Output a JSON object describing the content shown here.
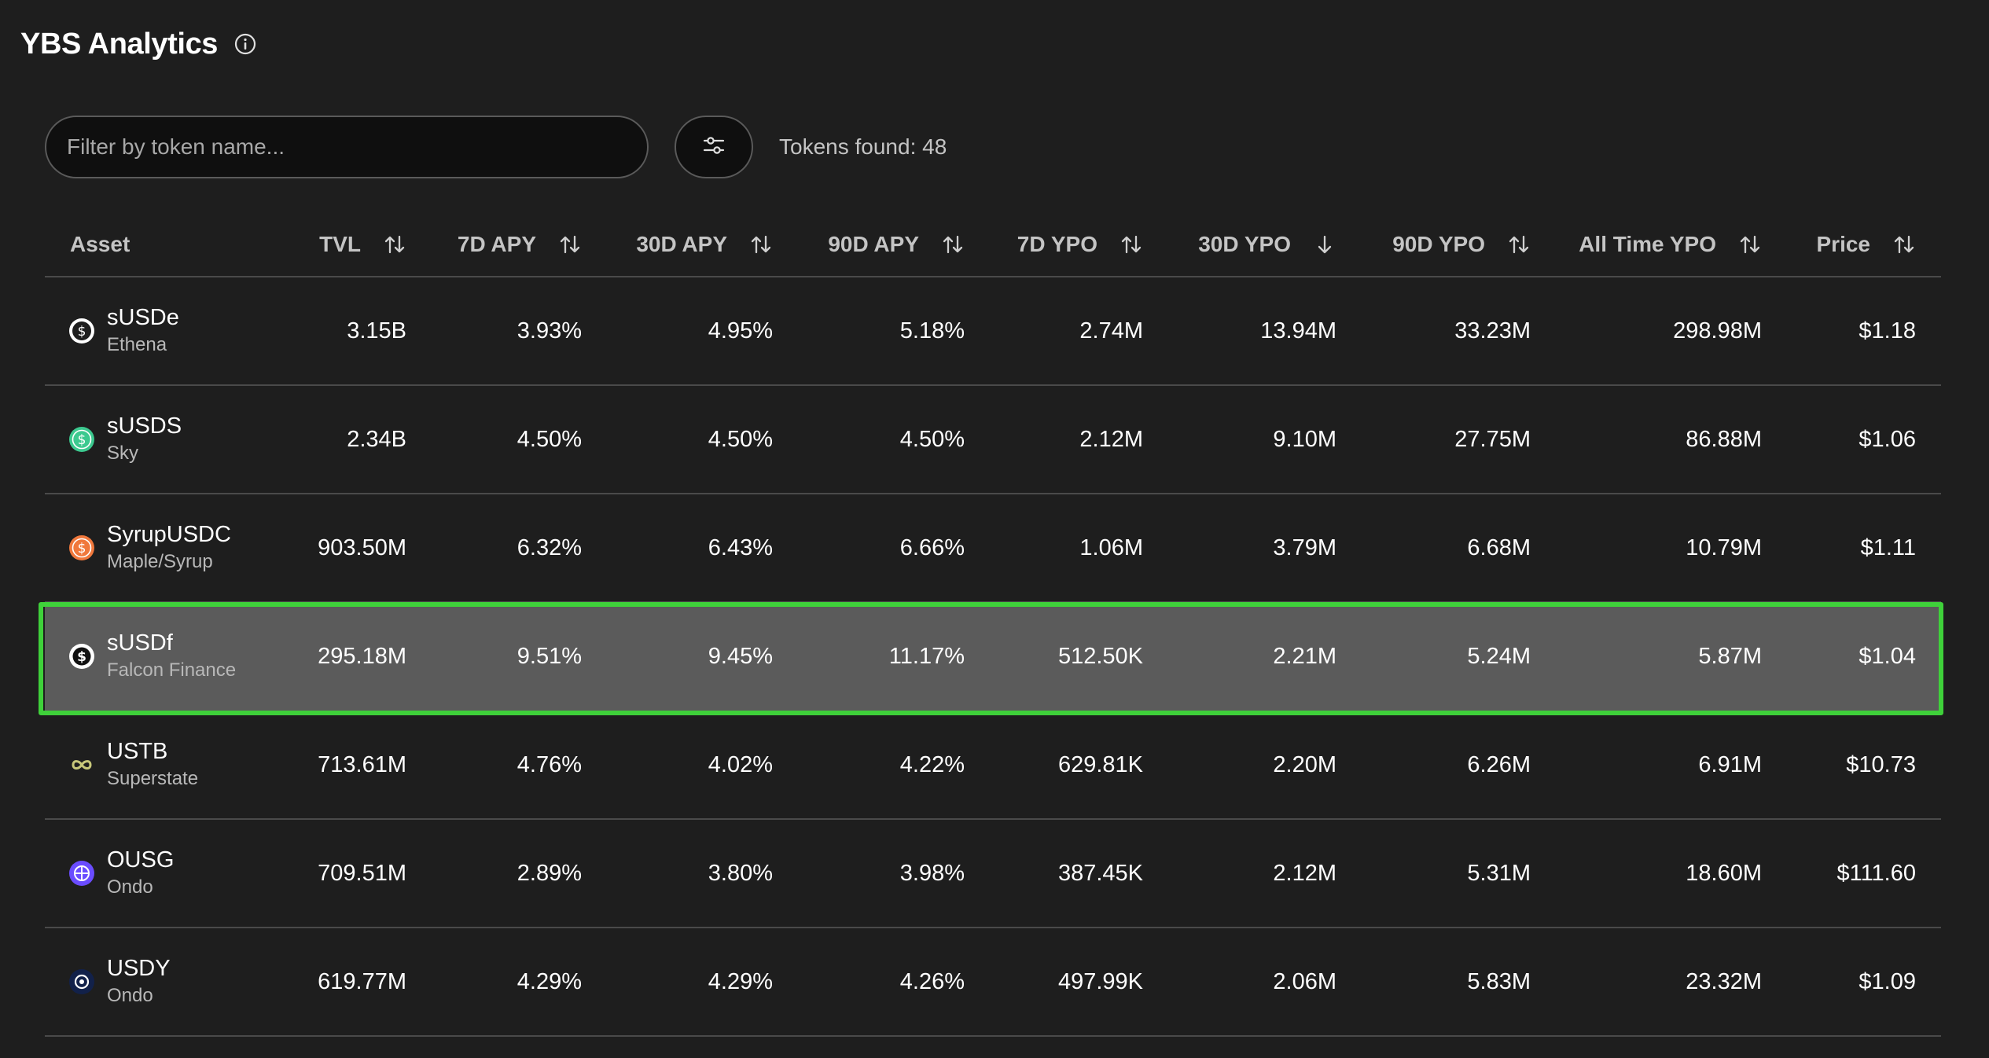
{
  "header": {
    "title": "YBS Analytics",
    "info_icon": "info-circle-icon"
  },
  "toolbar": {
    "search_placeholder": "Filter by token name...",
    "search_value": "",
    "filter_icon": "sliders-icon",
    "tokens_found": "Tokens found: 48"
  },
  "table": {
    "columns": [
      {
        "label": "Asset"
      },
      {
        "label": "TVL",
        "sort": "both"
      },
      {
        "label": "7D APY",
        "sort": "both"
      },
      {
        "label": "30D APY",
        "sort": "both"
      },
      {
        "label": "90D APY",
        "sort": "both"
      },
      {
        "label": "7D YPO",
        "sort": "both"
      },
      {
        "label": "30D YPO",
        "sort": "desc"
      },
      {
        "label": "90D YPO",
        "sort": "both"
      },
      {
        "label": "All Time YPO",
        "sort": "both"
      },
      {
        "label": "Price",
        "sort": "both"
      }
    ],
    "rows": [
      {
        "symbol": "sUSDe",
        "issuer": "Ethena",
        "icon": "ethena-token-icon",
        "icon_color": "#ffffff",
        "cells": [
          "3.15B",
          "3.93%",
          "4.95%",
          "5.18%",
          "2.74M",
          "13.94M",
          "33.23M",
          "298.98M",
          "$1.18"
        ]
      },
      {
        "symbol": "sUSDS",
        "issuer": "Sky",
        "icon": "sky-token-icon",
        "icon_color": "#3cc98f",
        "cells": [
          "2.34B",
          "4.50%",
          "4.50%",
          "4.50%",
          "2.12M",
          "9.10M",
          "27.75M",
          "86.88M",
          "$1.06"
        ]
      },
      {
        "symbol": "SyrupUSDC",
        "issuer": "Maple/Syrup",
        "icon": "syrup-token-icon",
        "icon_color": "#f0783c",
        "cells": [
          "903.50M",
          "6.32%",
          "6.43%",
          "6.66%",
          "1.06M",
          "3.79M",
          "6.68M",
          "10.79M",
          "$1.11"
        ]
      },
      {
        "symbol": "sUSDf",
        "issuer": "Falcon Finance",
        "icon": "falcon-token-icon",
        "icon_color": "#ffffff",
        "highlighted": true,
        "cells": [
          "295.18M",
          "9.51%",
          "9.45%",
          "11.17%",
          "512.50K",
          "2.21M",
          "5.24M",
          "5.87M",
          "$1.04"
        ]
      },
      {
        "symbol": "USTB",
        "issuer": "Superstate",
        "icon": "superstate-token-icon",
        "icon_color": "#c8c87a",
        "cells": [
          "713.61M",
          "4.76%",
          "4.02%",
          "4.22%",
          "629.81K",
          "2.20M",
          "6.26M",
          "6.91M",
          "$10.73"
        ]
      },
      {
        "symbol": "OUSG",
        "issuer": "Ondo",
        "icon": "ondo-ousg-token-icon",
        "icon_color": "#6a4cff",
        "cells": [
          "709.51M",
          "2.89%",
          "3.80%",
          "3.98%",
          "387.45K",
          "2.12M",
          "5.31M",
          "18.60M",
          "$111.60"
        ]
      },
      {
        "symbol": "USDY",
        "issuer": "Ondo",
        "icon": "ondo-usdy-token-icon",
        "icon_color": "#12214a",
        "cells": [
          "619.77M",
          "4.29%",
          "4.29%",
          "4.26%",
          "497.99K",
          "2.06M",
          "5.83M",
          "23.32M",
          "$1.09"
        ]
      }
    ]
  },
  "colors": {
    "background": "#1e1e1e",
    "highlight_row": "#5b5b5b",
    "highlight_border": "#3fd13a",
    "divider": "#4a4a4a"
  }
}
